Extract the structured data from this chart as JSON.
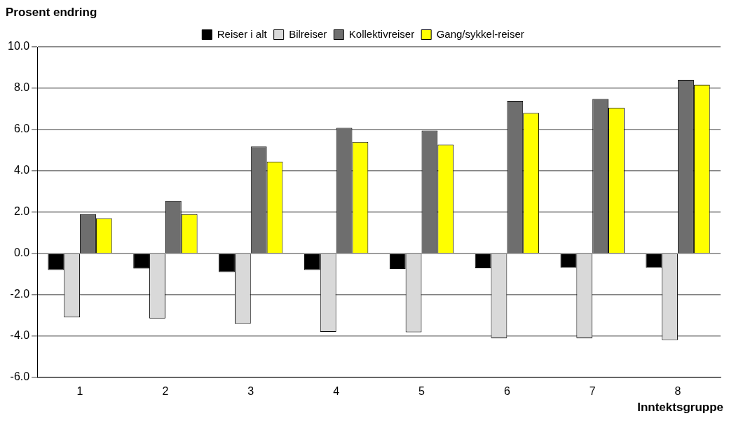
{
  "chart_data": {
    "type": "bar",
    "title": "Prosent endring",
    "xlabel": "Inntektsgruppe",
    "categories": [
      "1",
      "2",
      "3",
      "4",
      "5",
      "6",
      "7",
      "8"
    ],
    "series": [
      {
        "name": "Reiser i alt",
        "color": "#000000",
        "values": [
          -0.8,
          -0.73,
          -0.9,
          -0.8,
          -0.75,
          -0.72,
          -0.69,
          -0.69
        ]
      },
      {
        "name": "Bilreiser",
        "color": "#d9d9d9",
        "values": [
          -3.1,
          -3.15,
          -3.4,
          -3.8,
          -3.82,
          -4.11,
          -4.11,
          -4.19
        ]
      },
      {
        "name": "Kollektivreiser",
        "color": "#6e6e6e",
        "values": [
          1.9,
          2.55,
          5.18,
          6.08,
          5.95,
          7.39,
          7.48,
          8.41
        ]
      },
      {
        "name": "Gang/sykkel-reiser",
        "color": "#ffff00",
        "values": [
          1.7,
          1.9,
          4.45,
          5.4,
          5.27,
          6.8,
          7.06,
          8.17
        ]
      }
    ],
    "ylim": [
      -6,
      10
    ],
    "yticks": [
      {
        "value": -6,
        "label": "-6.0"
      },
      {
        "value": -4,
        "label": "-4.0"
      },
      {
        "value": -2,
        "label": "-2.0"
      },
      {
        "value": 0,
        "label": "0.0"
      },
      {
        "value": 2,
        "label": "2.0"
      },
      {
        "value": 4,
        "label": "4.0"
      },
      {
        "value": 6,
        "label": "6.0"
      },
      {
        "value": 8,
        "label": "8.0"
      },
      {
        "value": 10,
        "label": "10.0"
      }
    ],
    "grid": "y",
    "legend": "top"
  }
}
